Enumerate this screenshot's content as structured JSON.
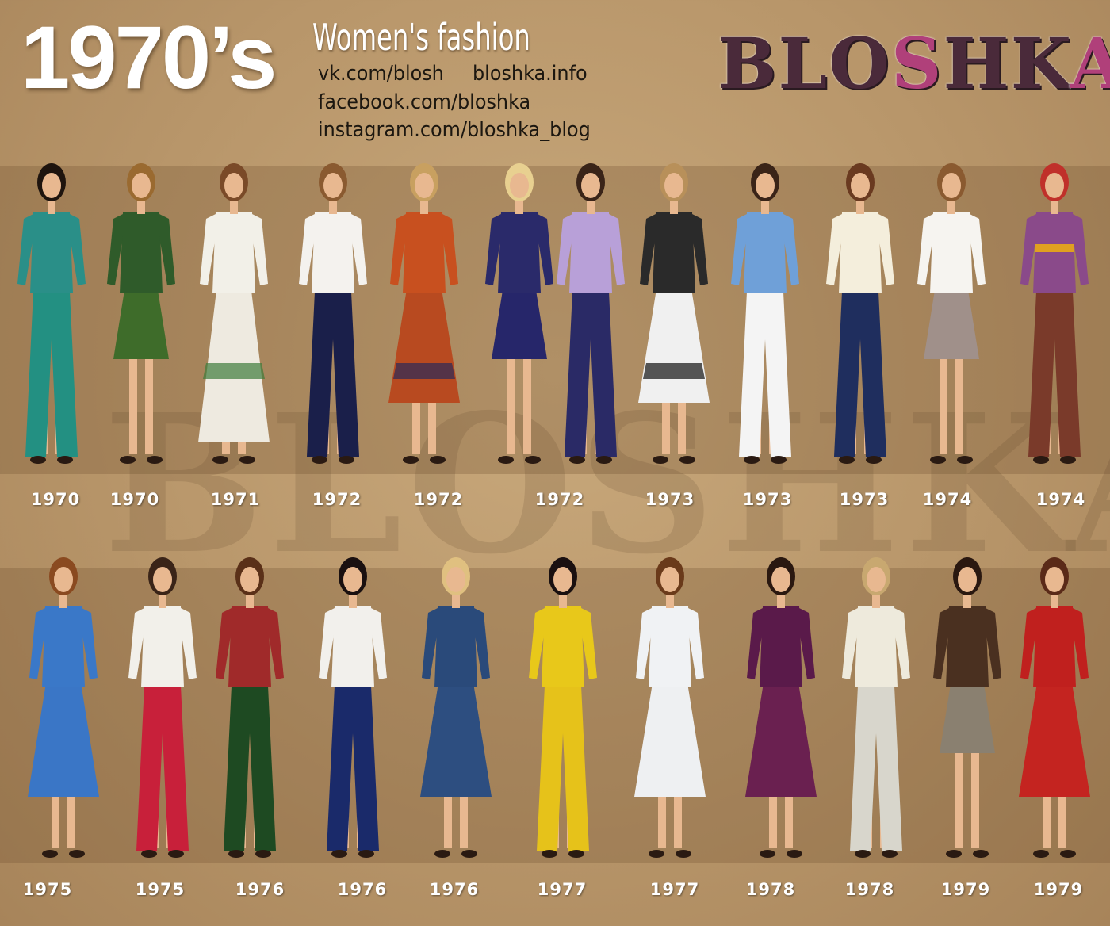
{
  "header": {
    "title": "1970’s",
    "subtitle": "Women's fashion",
    "links": [
      "vk.com/blosh",
      "bloshka.info",
      "facebook.com/bloshka",
      "instagram.com/bloshka_blog"
    ],
    "logo_text": "BLOSHKA",
    "logo_colors": {
      "dark": "#4a2a3a",
      "pink": "#b0407a"
    }
  },
  "watermark_text": "BLOSHKA",
  "rows": [
    {
      "figures": [
        {
          "year": "1970",
          "outfit": "pants",
          "top": "#2a8f88",
          "bottom": "#239082",
          "hair": "#1e140e"
        },
        {
          "year": "1970",
          "outfit": "skirt",
          "top": "#2f5b2a",
          "bottom": "#3e6c2a",
          "hair": "#9a6a30"
        },
        {
          "year": "1971",
          "outfit": "dress",
          "top": "#f2f0e8",
          "bottom": "#eeeae0",
          "hair": "#7a4a28",
          "accent": "#3d7a3a"
        },
        {
          "year": "1972",
          "outfit": "pants",
          "top": "#f4f2ee",
          "bottom": "#1a1f4a",
          "hair": "#8a5a30"
        },
        {
          "year": "1972",
          "outfit": "dress",
          "top": "#c8501f",
          "bottom": "#b84a20",
          "hair": "#c8a060",
          "accent": "#2a2a5a"
        },
        {
          "year": "1972",
          "outfit": "skirt",
          "top": "#2a2a6a",
          "bottom": "#26266a",
          "hair": "#e8d090"
        },
        {
          "year": "1972",
          "outfit": "pants",
          "top": "#b8a0d8",
          "bottom": "#2a2a66",
          "hair": "#3a2418"
        },
        {
          "year": "1973",
          "outfit": "dress",
          "top": "#2a2a2a",
          "bottom": "#f0f0f0",
          "hair": "#b8905a",
          "accent": "#111111"
        },
        {
          "year": "1973",
          "outfit": "pants",
          "top": "#6fa0d8",
          "bottom": "#f4f4f4",
          "hair": "#3a2418"
        },
        {
          "year": "1973",
          "outfit": "pants",
          "top": "#f4eedc",
          "bottom": "#1f2e5e",
          "hair": "#6a3a20"
        },
        {
          "year": "1974",
          "outfit": "skirt",
          "top": "#f6f4f0",
          "bottom": "#a0908a",
          "hair": "#8a5a30"
        },
        {
          "year": "1974",
          "outfit": "pants",
          "top": "#8a4a8a",
          "bottom": "#7a3a2a",
          "hair": "#c0302a",
          "accent": "#e0a020"
        }
      ]
    },
    {
      "figures": [
        {
          "year": "1975",
          "outfit": "dress",
          "top": "#3a78c8",
          "bottom": "#3a76c6",
          "hair": "#8a4a20"
        },
        {
          "year": "1975",
          "outfit": "pants",
          "top": "#f2f0ea",
          "bottom": "#c8203a",
          "hair": "#3a2418"
        },
        {
          "year": "1976",
          "outfit": "pants",
          "top": "#a02a2a",
          "bottom": "#1e4a22",
          "hair": "#5a3018"
        },
        {
          "year": "1976",
          "outfit": "pants",
          "top": "#f2f0ec",
          "bottom": "#1a2a6a",
          "hair": "#1a1010"
        },
        {
          "year": "1976",
          "outfit": "dress",
          "top": "#2a4a7a",
          "bottom": "#2d4e80",
          "hair": "#e0c080"
        },
        {
          "year": "1977",
          "outfit": "pants",
          "top": "#e8c81a",
          "bottom": "#e6c21a",
          "hair": "#1a1010"
        },
        {
          "year": "1977",
          "outfit": "dress",
          "top": "#f0f2f4",
          "bottom": "#eef0f2",
          "hair": "#6a3a1a"
        },
        {
          "year": "1978",
          "outfit": "dress",
          "top": "#5a1a4a",
          "bottom": "#6a2050",
          "hair": "#2a1810"
        },
        {
          "year": "1978",
          "outfit": "pants",
          "top": "#eeeadc",
          "bottom": "#d8d6cc",
          "hair": "#c8a870"
        },
        {
          "year": "1979",
          "outfit": "skirt",
          "top": "#4a3020",
          "bottom": "#8a8070",
          "hair": "#2a1810"
        },
        {
          "year": "1979",
          "outfit": "dress",
          "top": "#c0201e",
          "bottom": "#c42420",
          "hair": "#5a2a18"
        }
      ]
    }
  ]
}
